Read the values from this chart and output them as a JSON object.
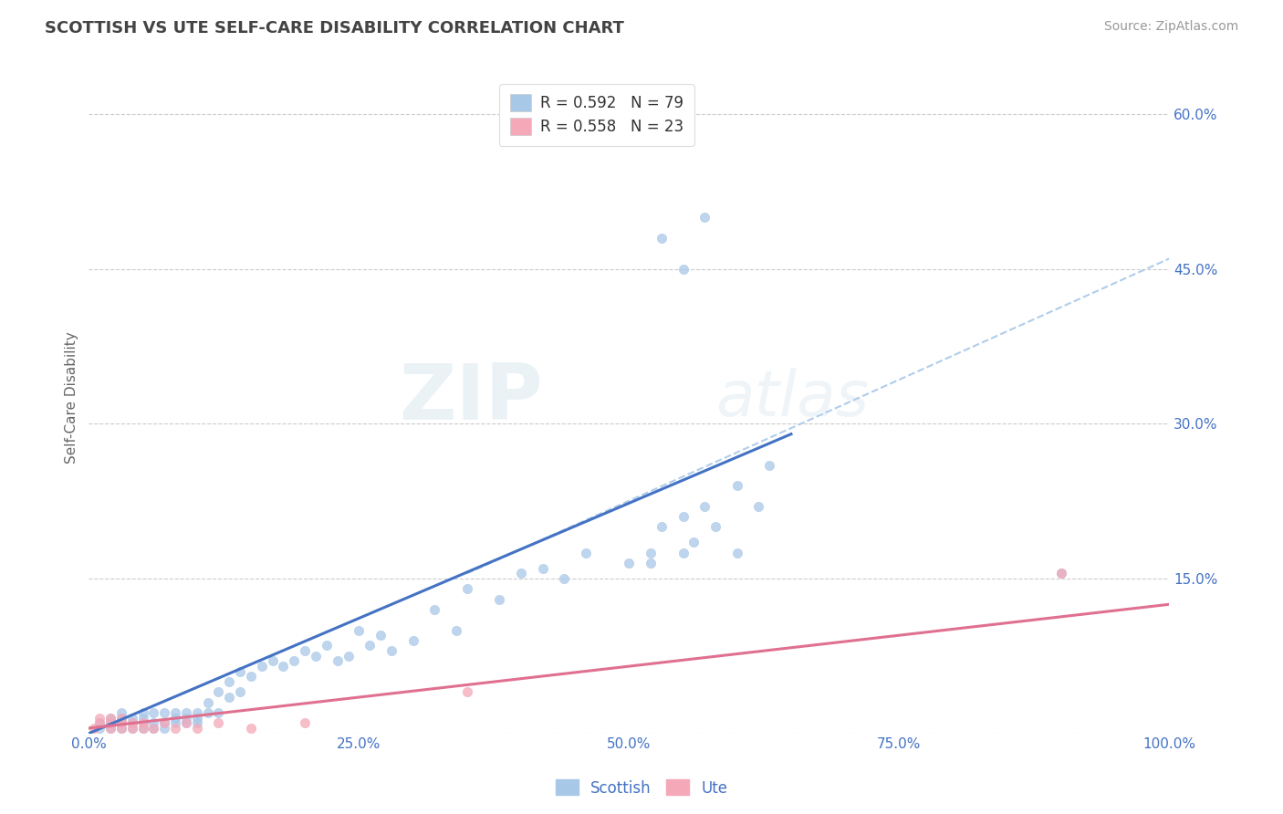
{
  "title": "SCOTTISH VS UTE SELF-CARE DISABILITY CORRELATION CHART",
  "source_text": "Source: ZipAtlas.com",
  "ylabel": "Self-Care Disability",
  "xlim": [
    0,
    1.0
  ],
  "ylim": [
    0,
    0.65
  ],
  "yticks": [
    0.0,
    0.15,
    0.3,
    0.45,
    0.6
  ],
  "ytick_labels": [
    "",
    "15.0%",
    "30.0%",
    "45.0%",
    "60.0%"
  ],
  "xticks": [
    0.0,
    0.25,
    0.5,
    0.75,
    1.0
  ],
  "xtick_labels": [
    "0.0%",
    "25.0%",
    "50.0%",
    "75.0%",
    "100.0%"
  ],
  "background_color": "#ffffff",
  "grid_color": "#cccccc",
  "title_color": "#444444",
  "axis_label_color": "#666666",
  "tick_label_color": "#4472c4",
  "watermark_zip": "ZIP",
  "watermark_atlas": "atlas",
  "legend_r1": "R = 0.592",
  "legend_n1": "N = 79",
  "legend_r2": "R = 0.558",
  "legend_n2": "N = 23",
  "scottish_color": "#a8c8e8",
  "ute_color": "#f4a8b8",
  "scottish_line_color": "#4472c4",
  "ute_line_color": "#e07090",
  "dashed_line_color": "#a8c8e8",
  "scottish_x": [
    0.01,
    0.01,
    0.02,
    0.02,
    0.02,
    0.03,
    0.03,
    0.03,
    0.03,
    0.04,
    0.04,
    0.04,
    0.05,
    0.05,
    0.05,
    0.05,
    0.06,
    0.06,
    0.06,
    0.07,
    0.07,
    0.07,
    0.08,
    0.08,
    0.08,
    0.09,
    0.09,
    0.09,
    0.1,
    0.1,
    0.1,
    0.11,
    0.11,
    0.12,
    0.12,
    0.13,
    0.13,
    0.14,
    0.14,
    0.15,
    0.16,
    0.17,
    0.18,
    0.19,
    0.2,
    0.21,
    0.22,
    0.23,
    0.24,
    0.25,
    0.26,
    0.27,
    0.28,
    0.3,
    0.32,
    0.34,
    0.35,
    0.38,
    0.4,
    0.42,
    0.44,
    0.46,
    0.5,
    0.52,
    0.53,
    0.55,
    0.57,
    0.6,
    0.63,
    0.53,
    0.55,
    0.57,
    0.9,
    0.62,
    0.6,
    0.56,
    0.52,
    0.55,
    0.58
  ],
  "scottish_y": [
    0.005,
    0.01,
    0.005,
    0.01,
    0.015,
    0.005,
    0.01,
    0.015,
    0.02,
    0.005,
    0.01,
    0.015,
    0.005,
    0.01,
    0.015,
    0.02,
    0.005,
    0.01,
    0.02,
    0.005,
    0.01,
    0.02,
    0.01,
    0.015,
    0.02,
    0.01,
    0.015,
    0.02,
    0.01,
    0.015,
    0.02,
    0.02,
    0.03,
    0.02,
    0.04,
    0.035,
    0.05,
    0.04,
    0.06,
    0.055,
    0.065,
    0.07,
    0.065,
    0.07,
    0.08,
    0.075,
    0.085,
    0.07,
    0.075,
    0.1,
    0.085,
    0.095,
    0.08,
    0.09,
    0.12,
    0.1,
    0.14,
    0.13,
    0.155,
    0.16,
    0.15,
    0.175,
    0.165,
    0.175,
    0.2,
    0.21,
    0.22,
    0.24,
    0.26,
    0.48,
    0.45,
    0.5,
    0.155,
    0.22,
    0.175,
    0.185,
    0.165,
    0.175,
    0.2
  ],
  "ute_x": [
    0.005,
    0.01,
    0.01,
    0.02,
    0.02,
    0.02,
    0.03,
    0.03,
    0.03,
    0.04,
    0.04,
    0.05,
    0.05,
    0.06,
    0.07,
    0.08,
    0.09,
    0.1,
    0.12,
    0.15,
    0.2,
    0.35,
    0.9
  ],
  "ute_y": [
    0.005,
    0.01,
    0.015,
    0.005,
    0.01,
    0.015,
    0.005,
    0.01,
    0.015,
    0.005,
    0.01,
    0.005,
    0.01,
    0.005,
    0.01,
    0.005,
    0.01,
    0.005,
    0.01,
    0.005,
    0.01,
    0.04,
    0.155
  ],
  "scottish_line_x0": 0.0,
  "scottish_line_y0": 0.0,
  "scottish_line_x1": 0.65,
  "scottish_line_y1": 0.29,
  "dashed_line_x0": 0.35,
  "dashed_line_y0": 0.155,
  "dashed_line_x1": 1.0,
  "dashed_line_y1": 0.46,
  "ute_line_x0": 0.0,
  "ute_line_y0": 0.005,
  "ute_line_x1": 1.0,
  "ute_line_y1": 0.125
}
